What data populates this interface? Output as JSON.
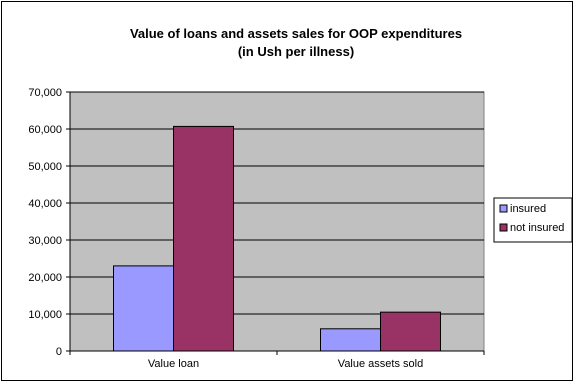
{
  "chart_data": {
    "type": "bar",
    "title": "Value of loans and assets sales for OOP expenditures",
    "subtitle": "(in Ush per illness)",
    "categories": [
      "Value loan",
      "Value assets sold"
    ],
    "series": [
      {
        "name": "insured",
        "values": [
          23000,
          6000
        ],
        "color": "#9999ff"
      },
      {
        "name": "not insured",
        "values": [
          60700,
          10500
        ],
        "color": "#993366"
      }
    ],
    "ylim": [
      0,
      70000
    ],
    "yticks": [
      0,
      10000,
      20000,
      30000,
      40000,
      50000,
      60000,
      70000
    ],
    "ytick_labels": [
      "0",
      "10,000",
      "20,000",
      "30,000",
      "40,000",
      "50,000",
      "60,000",
      "70,000"
    ],
    "grid": true,
    "plot_background": "#c0c0c0",
    "legend_position": "right"
  }
}
